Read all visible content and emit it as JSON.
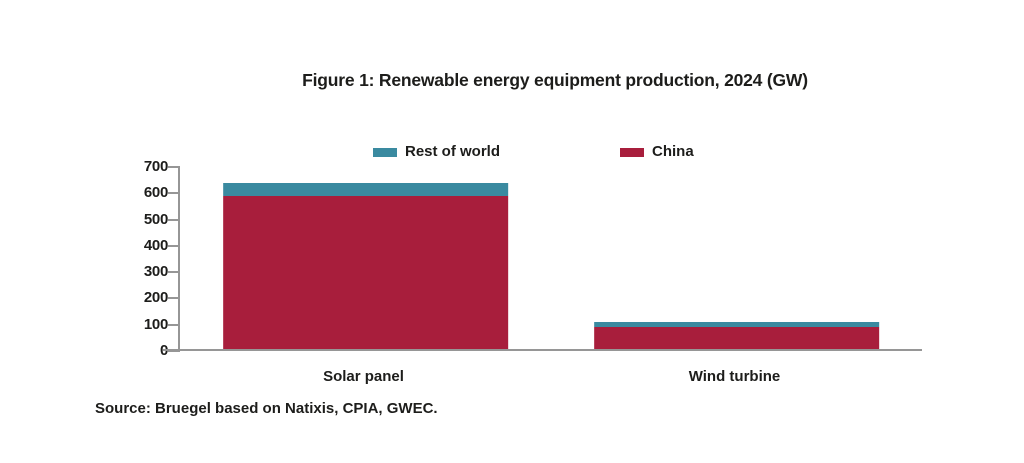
{
  "chart_data": {
    "type": "bar",
    "stacked": true,
    "title": "Figure 1: Renewable energy equipment production, 2024 (GW)",
    "categories": [
      "Solar panel",
      "Wind turbine"
    ],
    "series": [
      {
        "name": "China",
        "color": "#a81e3c",
        "values": [
          588,
          90
        ]
      },
      {
        "name": "Rest of world",
        "color": "#3a8aa0",
        "values": [
          50,
          22
        ]
      }
    ],
    "stack_order_bottom_to_top": [
      "China",
      "Rest of world"
    ],
    "totals": [
      638,
      112
    ],
    "xlabel": "",
    "ylabel": "",
    "ylim": [
      0,
      700
    ],
    "yticks": [
      0,
      100,
      200,
      300,
      400,
      500,
      600,
      700
    ],
    "grid": false,
    "legend": {
      "position": "top",
      "items": [
        {
          "label": "Rest of world",
          "color": "#3a8aa0"
        },
        {
          "label": "China",
          "color": "#a81e3c"
        }
      ]
    },
    "source_note": "Source: Bruegel based on Natixis, CPIA, GWEC."
  },
  "colors": {
    "china": "#a81e3c",
    "rest_of_world": "#3a8aa0",
    "axis": "#969696",
    "text": "#1d1d1b",
    "background": "#ffffff"
  }
}
